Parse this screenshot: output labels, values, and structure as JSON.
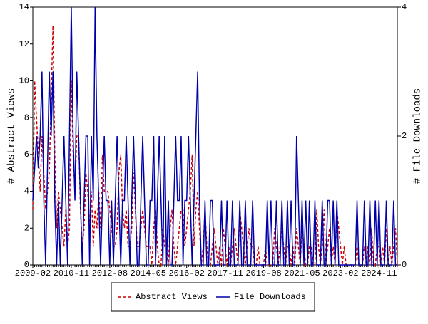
{
  "chart_data": {
    "type": "line",
    "categories": [
      "2009-02",
      null,
      null,
      null,
      null,
      null,
      null,
      null,
      null,
      null,
      null,
      null,
      null,
      null,
      null,
      null,
      null,
      null,
      null,
      null,
      null,
      "2010-11",
      null,
      null,
      null,
      null,
      null,
      null,
      null,
      null,
      null,
      null,
      null,
      null,
      null,
      null,
      null,
      null,
      null,
      null,
      null,
      null,
      "2012-08",
      null,
      null,
      null,
      null,
      null,
      null,
      null,
      null,
      null,
      null,
      null,
      null,
      null,
      null,
      null,
      null,
      null,
      null,
      null,
      null,
      "2014-05",
      null,
      null,
      null,
      null,
      null,
      null,
      null,
      null,
      null,
      null,
      null,
      null,
      null,
      null,
      null,
      null,
      null,
      null,
      null,
      null,
      "2016-02",
      null,
      null,
      null,
      null,
      null,
      null,
      null,
      null,
      null,
      null,
      null,
      null,
      null,
      null,
      null,
      null,
      null,
      null,
      null,
      null,
      "2017-11",
      null,
      null,
      null,
      null,
      null,
      null,
      null,
      null,
      null,
      null,
      null,
      null,
      null,
      null,
      null,
      null,
      null,
      null,
      null,
      null,
      "2019-08",
      null,
      null,
      null,
      null,
      null,
      null,
      null,
      null,
      null,
      null,
      null,
      null,
      null,
      null,
      null,
      null,
      null,
      null,
      null,
      null,
      "2021-05",
      null,
      null,
      null,
      null,
      null,
      null,
      null,
      null,
      null,
      null,
      null,
      null,
      null,
      null,
      null,
      null,
      null,
      null,
      null,
      null,
      "2023-02",
      null,
      null,
      null,
      null,
      null,
      null,
      null,
      null,
      null,
      null,
      null,
      null,
      null,
      null,
      null,
      null,
      null,
      null,
      null,
      null,
      "2024-11",
      null,
      null,
      null,
      null,
      null,
      null,
      null,
      null,
      null,
      null
    ],
    "ylabel": "# Abstract Views",
    "y2label": "# File Downloads",
    "ylim": [
      0,
      14
    ],
    "yticks": [
      0,
      2,
      4,
      6,
      8,
      10,
      12,
      14
    ],
    "y2lim": [
      0,
      4
    ],
    "y2ticks": [
      0,
      2,
      4
    ],
    "series": [
      {
        "name": "Abstract Views",
        "color": "#cc0000",
        "dash": true,
        "values": [
          3,
          10,
          8,
          6,
          4,
          7,
          5,
          3,
          4,
          5,
          9,
          13,
          6,
          2,
          4,
          3,
          2,
          1,
          3,
          1,
          2,
          10,
          6,
          4,
          7,
          7,
          3,
          1,
          2,
          5,
          4,
          2,
          4,
          1,
          3,
          2,
          4,
          2,
          6,
          4,
          4,
          4,
          3,
          2,
          1,
          1,
          2,
          5,
          6,
          3,
          2,
          3,
          1,
          1,
          2,
          5,
          3,
          1,
          1,
          2,
          3,
          2,
          1,
          1,
          1,
          0,
          2,
          3,
          1,
          0,
          0,
          2,
          1,
          1,
          0,
          2,
          3,
          1,
          0,
          1,
          2,
          3,
          3,
          1,
          2,
          3,
          4,
          6,
          1,
          3,
          4,
          2,
          0,
          1,
          3,
          1,
          0,
          0,
          1,
          2,
          1,
          0,
          1,
          0,
          2,
          1,
          0,
          1,
          0,
          1,
          2,
          1,
          0,
          3,
          2,
          1,
          0,
          1,
          2,
          1,
          1,
          0,
          0,
          1,
          0,
          0,
          0,
          1,
          0,
          0,
          0,
          0,
          2,
          1,
          0,
          1,
          2,
          1,
          0,
          1,
          1,
          0,
          1,
          0,
          2,
          1,
          0,
          2,
          1,
          0,
          0,
          1,
          1,
          0,
          0,
          3,
          1,
          0,
          1,
          3,
          0,
          1,
          2,
          0,
          1,
          0,
          3,
          2,
          1,
          0,
          1,
          0,
          0,
          0,
          0,
          0,
          0,
          1,
          0,
          0,
          0,
          1,
          0,
          1,
          0,
          2,
          0,
          0,
          1,
          1,
          0,
          1,
          0,
          2,
          0,
          1,
          0,
          1,
          2,
          0
        ]
      },
      {
        "name": "File Downloads",
        "color": "#0000aa",
        "axis": "y2",
        "values": [
          1,
          1.5,
          2,
          1.5,
          2,
          3,
          1,
          0,
          1.5,
          3,
          2,
          3,
          1,
          0,
          1,
          0,
          1,
          2,
          1,
          0,
          2,
          4,
          2,
          1,
          3,
          2,
          1,
          0,
          1,
          2,
          2,
          0,
          2,
          1,
          4,
          2,
          1,
          0,
          1,
          2,
          1,
          1,
          0,
          1,
          0,
          1,
          2,
          1,
          0,
          1,
          1,
          2,
          1,
          0,
          1,
          2,
          1,
          0,
          0,
          1,
          2,
          1,
          0,
          0,
          1,
          1,
          2,
          0,
          1,
          2,
          1,
          0,
          2,
          0,
          1,
          0,
          0,
          1,
          2,
          1,
          1,
          2,
          0,
          1,
          1,
          2,
          1,
          0,
          1,
          2,
          3,
          1,
          0,
          0,
          1,
          0,
          0,
          1,
          1,
          0,
          0,
          0,
          0,
          1,
          0,
          0,
          1,
          0,
          0,
          1,
          0,
          0,
          0,
          1,
          0,
          0,
          1,
          0,
          0,
          0,
          1,
          0,
          0,
          0,
          0,
          0,
          0,
          0,
          1,
          0,
          1,
          0,
          0,
          1,
          0,
          0,
          1,
          0,
          0,
          1,
          0,
          1,
          0,
          0,
          2,
          1,
          0,
          1,
          0,
          1,
          0,
          1,
          0,
          0,
          1,
          0,
          0,
          0,
          1,
          0,
          0,
          1,
          1,
          0,
          1,
          0,
          1,
          0,
          0,
          0,
          0,
          0,
          0,
          0,
          0,
          0,
          0,
          1,
          0,
          0,
          0,
          1,
          0,
          0,
          1,
          0,
          0,
          1,
          0,
          1,
          0,
          0,
          0,
          1,
          0,
          0,
          0,
          1,
          0,
          0
        ]
      }
    ]
  }
}
